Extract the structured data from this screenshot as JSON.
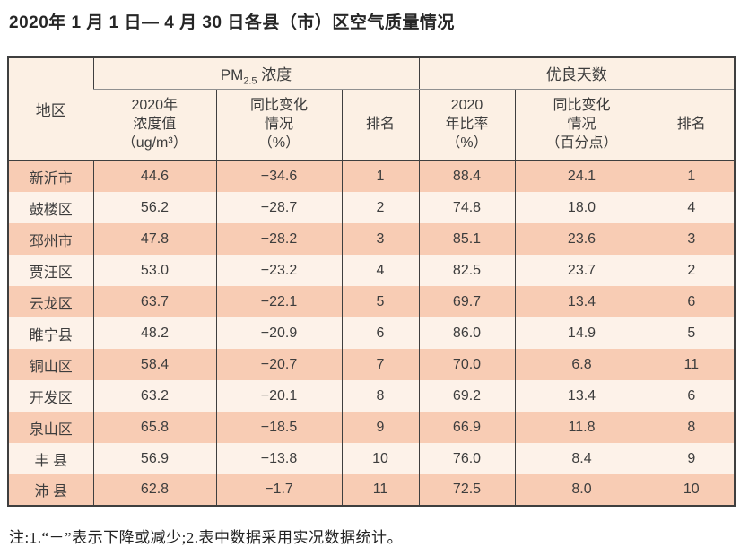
{
  "title": "2020年 1 月 1 日— 4 月 30 日各县（市）区空气质量情况",
  "note": "注:1.“－”表示下降或减少;2.表中数据采用实况数据统计。",
  "colors": {
    "row_salmon": "#f8ccb4",
    "row_light": "#fdf2e9",
    "header_bg": "#fcf0e4",
    "border_dark": "#3f3f3f",
    "border_gray": "#909090",
    "text": "#3d3d3d"
  },
  "table": {
    "region_header": "地区",
    "group1": {
      "prefix": "PM",
      "sub": "2.5",
      "suffix": " 浓度"
    },
    "group2": "优良天数",
    "subheaders": [
      "2020年\n浓度值\n（ug/m³）",
      "同比变化\n情况\n（%）",
      "排名",
      "2020\n年比率\n（%）",
      "同比变化\n情况\n（百分点）",
      "排名"
    ],
    "rows": [
      [
        "新沂市",
        "44.6",
        "−34.6",
        "1",
        "88.4",
        "24.1",
        "1"
      ],
      [
        "鼓楼区",
        "56.2",
        "−28.7",
        "2",
        "74.8",
        "18.0",
        "4"
      ],
      [
        "邳州市",
        "47.8",
        "−28.2",
        "3",
        "85.1",
        "23.6",
        "3"
      ],
      [
        "贾汪区",
        "53.0",
        "−23.2",
        "4",
        "82.5",
        "23.7",
        "2"
      ],
      [
        "云龙区",
        "63.7",
        "−22.1",
        "5",
        "69.7",
        "13.4",
        "6"
      ],
      [
        "睢宁县",
        "48.2",
        "−20.9",
        "6",
        "86.0",
        "14.9",
        "5"
      ],
      [
        "铜山区",
        "58.4",
        "−20.7",
        "7",
        "70.0",
        "6.8",
        "11"
      ],
      [
        "开发区",
        "63.2",
        "−20.1",
        "8",
        "69.2",
        "13.4",
        "6"
      ],
      [
        "泉山区",
        "65.8",
        "−18.5",
        "9",
        "66.9",
        "11.8",
        "8"
      ],
      [
        "丰 县",
        "56.9",
        "−13.8",
        "10",
        "76.0",
        "8.4",
        "9"
      ],
      [
        "沛 县",
        "62.8",
        "−1.7",
        "11",
        "72.5",
        "8.0",
        "10"
      ]
    ]
  }
}
